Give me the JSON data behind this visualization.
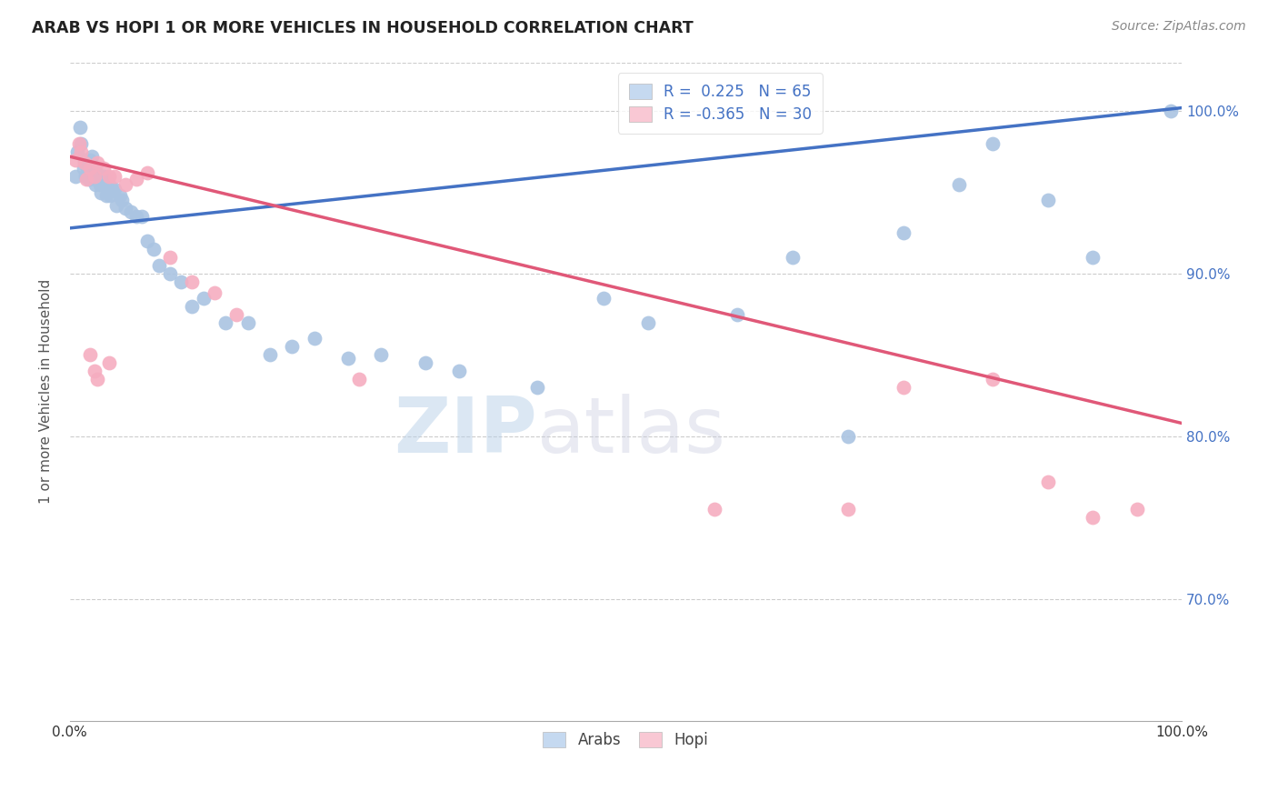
{
  "title": "ARAB VS HOPI 1 OR MORE VEHICLES IN HOUSEHOLD CORRELATION CHART",
  "source": "Source: ZipAtlas.com",
  "ylabel": "1 or more Vehicles in Household",
  "xlim": [
    0.0,
    1.0
  ],
  "ylim": [
    0.625,
    1.03
  ],
  "yticks": [
    0.7,
    0.8,
    0.9,
    1.0
  ],
  "ytick_labels": [
    "70.0%",
    "80.0%",
    "90.0%",
    "100.0%"
  ],
  "xticks": [
    0.0,
    0.1,
    0.2,
    0.3,
    0.4,
    0.5,
    0.6,
    0.7,
    0.8,
    0.9,
    1.0
  ],
  "xtick_labels": [
    "0.0%",
    "",
    "",
    "",
    "",
    "",
    "",
    "",
    "",
    "",
    "100.0%"
  ],
  "arab_R": 0.225,
  "arab_N": 65,
  "hopi_R": -0.365,
  "hopi_N": 30,
  "arab_color": "#aac4e2",
  "hopi_color": "#f5adc0",
  "arab_line_color": "#4472c4",
  "hopi_line_color": "#e05878",
  "legend_arab_fill": "#c5d9f0",
  "legend_hopi_fill": "#f9c8d4",
  "background_color": "#ffffff",
  "watermark_zip": "ZIP",
  "watermark_atlas": "atlas",
  "grid_color": "#cccccc",
  "arab_line_x0": 0.0,
  "arab_line_y0": 0.928,
  "arab_line_x1": 1.0,
  "arab_line_y1": 1.002,
  "hopi_line_x0": 0.0,
  "hopi_line_y0": 0.972,
  "hopi_line_x1": 1.0,
  "hopi_line_y1": 0.808,
  "arab_x": [
    0.005,
    0.007,
    0.009,
    0.01,
    0.012,
    0.013,
    0.014,
    0.015,
    0.016,
    0.017,
    0.018,
    0.018,
    0.02,
    0.02,
    0.021,
    0.022,
    0.023,
    0.024,
    0.025,
    0.026,
    0.027,
    0.028,
    0.03,
    0.031,
    0.032,
    0.033,
    0.035,
    0.036,
    0.038,
    0.04,
    0.042,
    0.045,
    0.047,
    0.05,
    0.055,
    0.06,
    0.065,
    0.07,
    0.075,
    0.08,
    0.09,
    0.1,
    0.11,
    0.12,
    0.14,
    0.16,
    0.18,
    0.2,
    0.22,
    0.25,
    0.28,
    0.32,
    0.35,
    0.42,
    0.48,
    0.52,
    0.6,
    0.65,
    0.7,
    0.75,
    0.8,
    0.83,
    0.88,
    0.92,
    0.99
  ],
  "arab_y": [
    0.96,
    0.975,
    0.99,
    0.98,
    0.965,
    0.97,
    0.96,
    0.968,
    0.965,
    0.958,
    0.97,
    0.965,
    0.972,
    0.96,
    0.965,
    0.96,
    0.955,
    0.962,
    0.958,
    0.96,
    0.955,
    0.95,
    0.96,
    0.958,
    0.955,
    0.948,
    0.955,
    0.948,
    0.952,
    0.952,
    0.942,
    0.948,
    0.945,
    0.94,
    0.938,
    0.935,
    0.935,
    0.92,
    0.915,
    0.905,
    0.9,
    0.895,
    0.88,
    0.885,
    0.87,
    0.87,
    0.85,
    0.855,
    0.86,
    0.848,
    0.85,
    0.845,
    0.84,
    0.83,
    0.885,
    0.87,
    0.875,
    0.91,
    0.8,
    0.925,
    0.955,
    0.98,
    0.945,
    0.91,
    1.0
  ],
  "hopi_x": [
    0.005,
    0.008,
    0.01,
    0.013,
    0.015,
    0.018,
    0.022,
    0.025,
    0.03,
    0.035,
    0.04,
    0.05,
    0.06,
    0.07,
    0.09,
    0.11,
    0.13,
    0.15,
    0.018,
    0.022,
    0.025,
    0.035,
    0.26,
    0.58,
    0.7,
    0.75,
    0.83,
    0.88,
    0.92,
    0.96
  ],
  "hopi_y": [
    0.97,
    0.98,
    0.975,
    0.968,
    0.958,
    0.965,
    0.96,
    0.968,
    0.965,
    0.96,
    0.96,
    0.955,
    0.958,
    0.962,
    0.91,
    0.895,
    0.888,
    0.875,
    0.85,
    0.84,
    0.835,
    0.845,
    0.835,
    0.755,
    0.755,
    0.83,
    0.835,
    0.772,
    0.75,
    0.755
  ]
}
